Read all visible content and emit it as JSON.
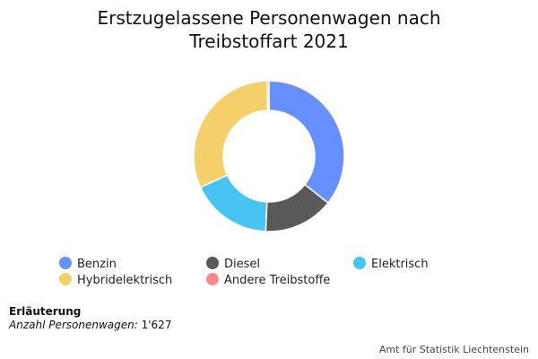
{
  "chart_data": {
    "type": "pie",
    "variant": "donut",
    "title_line1": "Erstzugelassene Personenwagen nach",
    "title_line2": "Treibstoffart 2021",
    "categories": [
      "Benzin",
      "Diesel",
      "Elektrisch",
      "Hybridelektrisch",
      "Andere Treibstoffe"
    ],
    "values": [
      580,
      245,
      285,
      510,
      7
    ],
    "colors": [
      "#6690ff",
      "#595959",
      "#48c3f2",
      "#f5d06a",
      "#ff8a8a"
    ],
    "legend_position": "bottom"
  },
  "note": {
    "title": "Erläuterung",
    "label": "Anzahl Personenwagen:",
    "value": "1'627"
  },
  "source": "Amt für Statistik Liechtenstein"
}
